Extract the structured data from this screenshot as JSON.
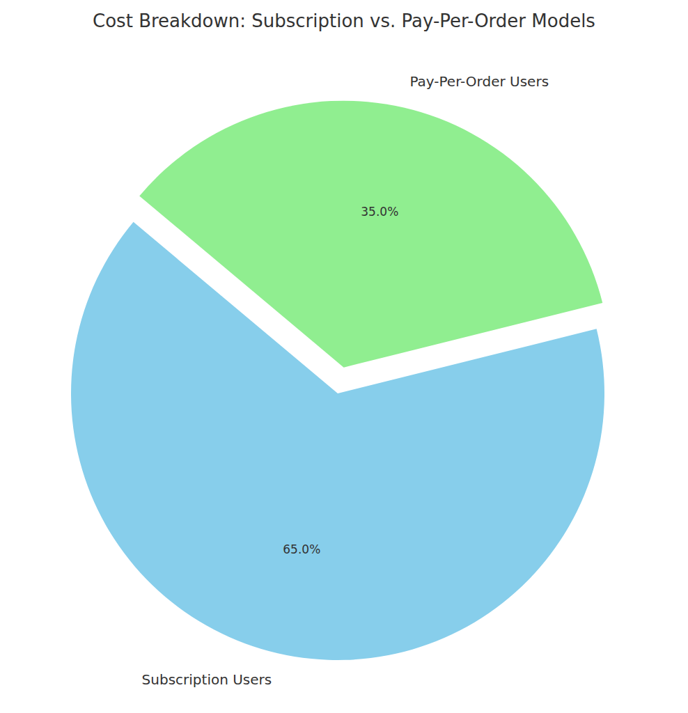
{
  "chart_data": {
    "type": "pie",
    "title": "Cost Breakdown: Subscription vs. Pay-Per-Order Models",
    "categories": [
      "Subscription Users",
      "Pay-Per-Order Users"
    ],
    "values": [
      65,
      35
    ],
    "value_labels": [
      "65.0%",
      "35.0%"
    ],
    "colors": [
      "#87ceeb",
      "#90ee90"
    ],
    "data_labels": true
  }
}
